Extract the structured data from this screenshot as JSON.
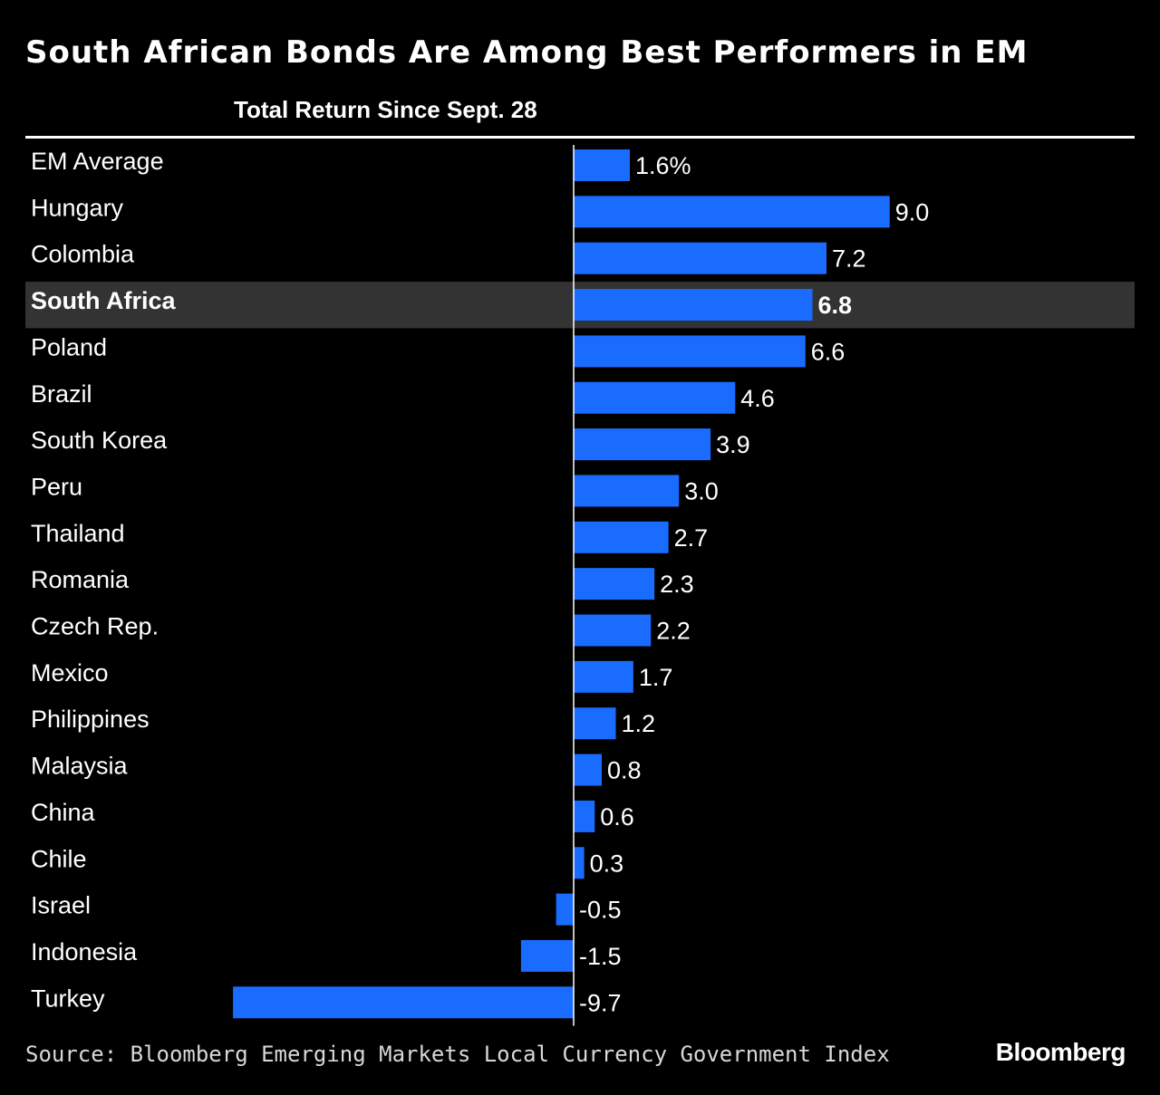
{
  "title": "South African Bonds Are Among Best Performers in EM",
  "subtitle": "Total Return Since Sept. 28",
  "source": "Source: Bloomberg Emerging Markets Local Currency Government Index",
  "brand": "Bloomberg",
  "colors": {
    "background": "#000000",
    "bar": "#1a6cff",
    "highlight_row": "#333333",
    "text": "#ffffff"
  },
  "chart_data": {
    "type": "bar",
    "orientation": "horizontal",
    "unit": "%",
    "highlight": "South Africa",
    "xlim": [
      -10,
      10
    ],
    "categories": [
      "EM Average",
      "Hungary",
      "Colombia",
      "South Africa",
      "Poland",
      "Brazil",
      "South Korea",
      "Peru",
      "Thailand",
      "Romania",
      "Czech Rep.",
      "Mexico",
      "Philippines",
      "Malaysia",
      "China",
      "Chile",
      "Israel",
      "Indonesia",
      "Turkey"
    ],
    "values": [
      1.6,
      9.0,
      7.2,
      6.8,
      6.6,
      4.6,
      3.9,
      3.0,
      2.7,
      2.3,
      2.2,
      1.7,
      1.2,
      0.8,
      0.6,
      0.3,
      -0.5,
      -1.5,
      -9.7
    ],
    "labels": [
      "1.6%",
      "9.0",
      "7.2",
      "6.8",
      "6.6",
      "4.6",
      "3.9",
      "3.0",
      "2.7",
      "2.3",
      "2.2",
      "1.7",
      "1.2",
      "0.8",
      "0.6",
      "0.3",
      "-0.5",
      "-1.5",
      "-9.7"
    ]
  }
}
